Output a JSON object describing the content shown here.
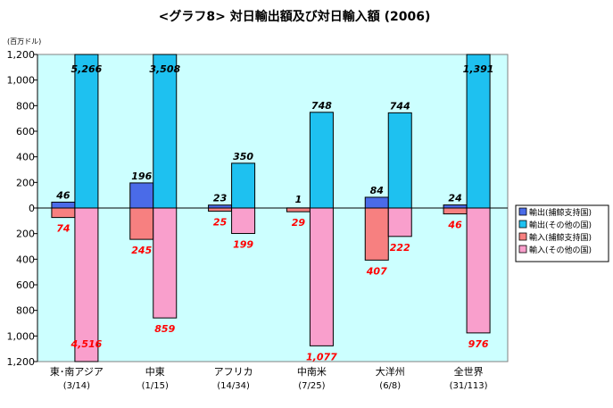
{
  "chart_data": {
    "type": "bar",
    "title": "<グラフ8> 対日輸出額及び対日輸入額 (2006)",
    "unit_label": "(百万ドル)",
    "yticks": [
      "1,200",
      "1,000",
      "800",
      "600",
      "400",
      "200",
      "0",
      "200",
      "400",
      "600",
      "800",
      "1,000",
      "1,200"
    ],
    "ylim": [
      -1200,
      1200
    ],
    "categories": [
      {
        "name": "東･南アジア",
        "sub": "(3/14)"
      },
      {
        "name": "中東",
        "sub": "(1/15)"
      },
      {
        "name": "アフリカ",
        "sub": "(14/34)"
      },
      {
        "name": "中南米",
        "sub": "(7/25)"
      },
      {
        "name": "大洋州",
        "sub": "(6/8)"
      },
      {
        "name": "全世界",
        "sub": "(31/113)"
      }
    ],
    "series": [
      {
        "name": "輸出(捕鯨支持国)",
        "color": "#4a6be8",
        "values": [
          46,
          196,
          23,
          1,
          84,
          24
        ],
        "labels": [
          "46",
          "196",
          "23",
          "1",
          "84",
          "24"
        ]
      },
      {
        "name": "輸出(その他の国)",
        "color": "#1ec1f0",
        "values": [
          5266,
          3508,
          350,
          748,
          744,
          1391
        ],
        "labels": [
          "5,266",
          "3,508",
          "350",
          "748",
          "744",
          "1,391"
        ]
      },
      {
        "name": "輸入(捕鯨支持国)",
        "color": "#f78080",
        "values": [
          -74,
          -245,
          -25,
          -29,
          -407,
          -46
        ],
        "labels": [
          "74",
          "245",
          "25",
          "29",
          "407",
          "46"
        ]
      },
      {
        "name": "輸入(その他の国)",
        "color": "#f99fcc",
        "values": [
          -4516,
          -859,
          -199,
          -1077,
          -222,
          -976
        ],
        "labels": [
          "4,516",
          "859",
          "199",
          "1,077",
          "222",
          "976"
        ]
      }
    ],
    "plot_background": "#ccffff"
  }
}
